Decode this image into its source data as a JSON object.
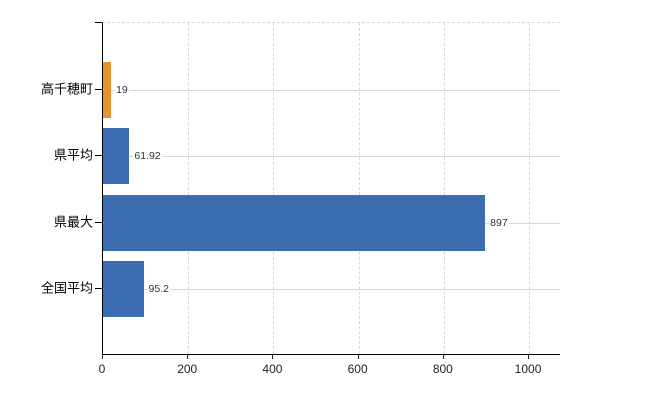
{
  "chart_data": {
    "type": "bar",
    "orientation": "horizontal",
    "title": "",
    "categories": [
      "高千穂町",
      "県平均",
      "県最大",
      "全国平均"
    ],
    "values": [
      19,
      61.92,
      897,
      95.2
    ],
    "value_labels": [
      "19",
      "61.92",
      "897",
      "95.2"
    ],
    "bar_colors": [
      "#e8912f",
      "#3c6db0",
      "#3c6db0",
      "#3c6db0"
    ],
    "x_ticks": [
      0,
      200,
      400,
      600,
      800,
      1000
    ],
    "x_tick_labels": [
      "0",
      "200",
      "400",
      "600",
      "800",
      "1000"
    ],
    "xlim": [
      0,
      1075
    ],
    "grid": true,
    "legend": false,
    "colors": {
      "highlight_bar": "#e8912f",
      "default_bar": "#3c6db0",
      "grid_line": "#d9d9d9",
      "axis_line": "#000000",
      "value_text": "#333333",
      "category_text": "#000000"
    }
  }
}
